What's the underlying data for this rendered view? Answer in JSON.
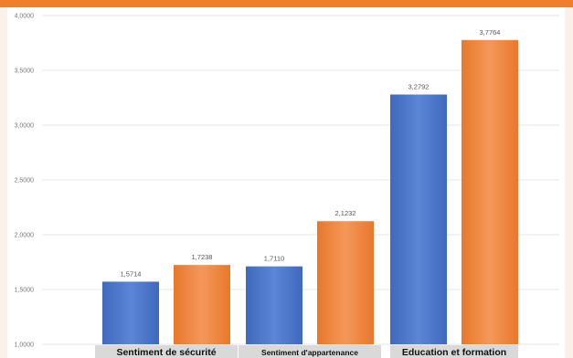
{
  "chart_data": {
    "type": "bar",
    "title": "",
    "xlabel": "",
    "ylabel": "",
    "categories": [
      "Sentiment de sécurité",
      "Sentiment d'appartenance",
      "Education et formation"
    ],
    "series": [
      {
        "values": [
          1.5714,
          1.711,
          3.2792
        ]
      },
      {
        "values": [
          1.7238,
          2.1232,
          3.7764
        ]
      }
    ],
    "value_labels": [
      [
        "1,5714",
        "1,7110",
        "3,2792"
      ],
      [
        "1,7238",
        "2,1232",
        "3,7764"
      ]
    ],
    "y_ticks": [
      "1,0000",
      "1,5000",
      "2,0000",
      "2,5000",
      "3,0000",
      "3,5000",
      "4,0000"
    ],
    "ylim": [
      1.0,
      4.0
    ],
    "grid": true,
    "legend": "none",
    "colors": {
      "series_1": "#4472c4",
      "series_2": "#ed7d31",
      "grid": "#e6e6e6",
      "category_box": "#d9d9d9",
      "accent_band": "#f07f2b"
    }
  }
}
